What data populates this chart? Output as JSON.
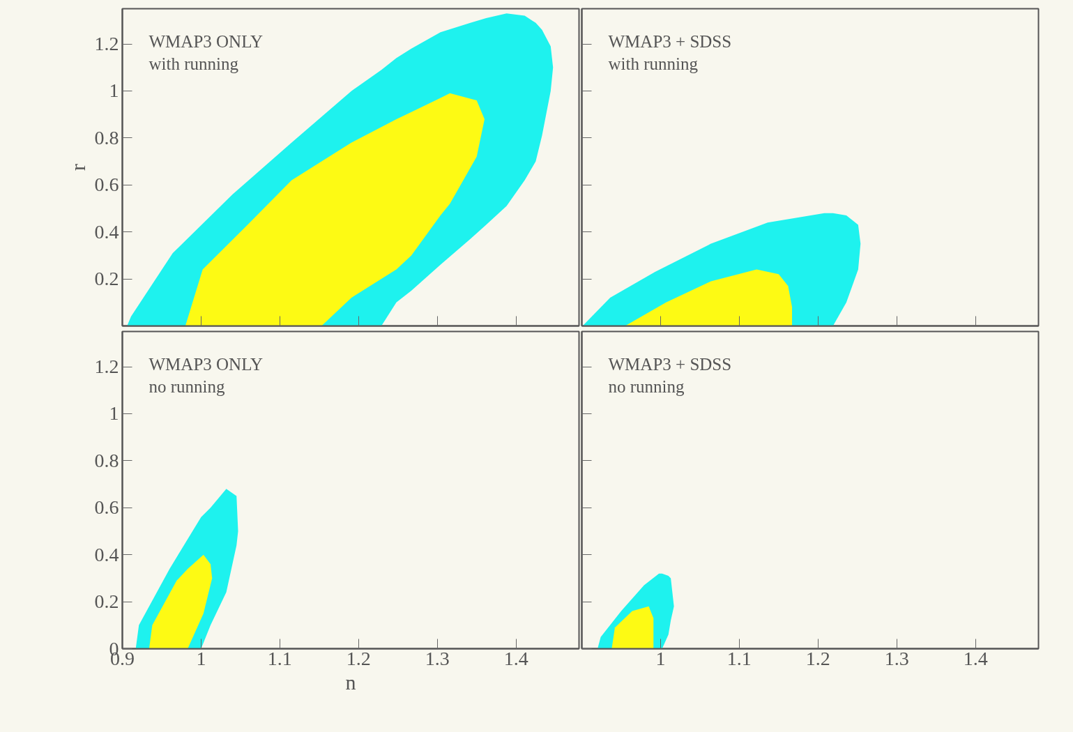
{
  "chart_data": [
    {
      "type": "area",
      "ylabel": "r",
      "xlim": [
        0.9,
        1.48
      ],
      "ylim": [
        0,
        1.35
      ],
      "xticks": [
        0.9,
        1,
        1.1,
        1.2,
        1.3,
        1.4
      ],
      "yticks": [
        0.2,
        0.4,
        0.6,
        0.8,
        1,
        1.2
      ],
      "tick_labels": "y",
      "grid": false,
      "annotations": [
        "WMAP3 ONLY",
        "with running"
      ],
      "series": [
        {
          "color": "#1ef2ee",
          "x": [
            0.906,
            0.911,
            0.964,
            1.04,
            1.115,
            1.191,
            1.229,
            1.248,
            1.267,
            1.304,
            1.342,
            1.362,
            1.388,
            1.411,
            1.425,
            1.433,
            1.444,
            1.447,
            1.444,
            1.433,
            1.425,
            1.411,
            1.388,
            1.362,
            1.342,
            1.304,
            1.267,
            1.248,
            1.229
          ],
          "values": [
            0,
            0.04,
            0.31,
            0.56,
            0.78,
            1.0,
            1.09,
            1.14,
            1.18,
            1.25,
            1.29,
            1.31,
            1.33,
            1.32,
            1.29,
            1.26,
            1.19,
            1.1,
            1.0,
            0.81,
            0.7,
            0.62,
            0.51,
            0.43,
            0.37,
            0.26,
            0.15,
            0.1,
            0
          ]
        },
        {
          "color": "#fdfa14",
          "x": [
            0.98,
            1.002,
            1.059,
            1.115,
            1.153,
            1.191,
            1.248,
            1.267,
            1.304,
            1.316,
            1.35,
            1.36,
            1.35,
            1.316,
            1.304,
            1.267,
            1.248,
            1.191,
            1.153
          ],
          "values": [
            0,
            0.24,
            0.43,
            0.62,
            0.7,
            0.78,
            0.88,
            0.91,
            0.97,
            0.99,
            0.96,
            0.88,
            0.72,
            0.52,
            0.47,
            0.3,
            0.24,
            0.12,
            0
          ]
        }
      ]
    },
    {
      "type": "area",
      "xlim": [
        0.9,
        1.48
      ],
      "ylim": [
        0,
        1.35
      ],
      "xticks": [
        0.9,
        1,
        1.1,
        1.2,
        1.3,
        1.4
      ],
      "yticks": [
        0.2,
        0.4,
        0.6,
        0.8,
        1,
        1.2
      ],
      "tick_labels": false,
      "grid": false,
      "annotations": [
        "WMAP3 + SDSS",
        "with running"
      ],
      "series": [
        {
          "color": "#1ef2ee",
          "x": [
            0.901,
            0.936,
            0.993,
            1.064,
            1.136,
            1.208,
            1.219,
            1.236,
            1.251,
            1.254,
            1.251,
            1.236,
            1.219
          ],
          "values": [
            0,
            0.12,
            0.23,
            0.35,
            0.44,
            0.48,
            0.48,
            0.47,
            0.43,
            0.35,
            0.24,
            0.1,
            0
          ]
        },
        {
          "color": "#fdfa14",
          "x": [
            0.955,
            1.007,
            1.064,
            1.122,
            1.15,
            1.162,
            1.167,
            1.167
          ],
          "values": [
            0,
            0.1,
            0.19,
            0.24,
            0.22,
            0.17,
            0.08,
            0
          ]
        }
      ]
    },
    {
      "type": "area",
      "xlabel": "n",
      "xlim": [
        0.9,
        1.48
      ],
      "ylim": [
        0,
        1.35
      ],
      "xticks": [
        0.9,
        1,
        1.1,
        1.2,
        1.3,
        1.4
      ],
      "yticks": [
        0,
        0.2,
        0.4,
        0.6,
        0.8,
        1,
        1.2
      ],
      "grid": false,
      "annotations": [
        "WMAP3 ONLY",
        "no running"
      ],
      "series": [
        {
          "color": "#1ef2ee",
          "x": [
            0.917,
            0.921,
            0.96,
            1.0,
            1.012,
            1.032,
            1.045,
            1.047,
            1.045,
            1.032,
            1.012,
            1.0
          ],
          "values": [
            0,
            0.1,
            0.34,
            0.56,
            0.6,
            0.68,
            0.65,
            0.5,
            0.44,
            0.24,
            0.1,
            0
          ]
        },
        {
          "color": "#fdfa14",
          "x": [
            0.934,
            0.938,
            0.969,
            0.983,
            1.003,
            1.012,
            1.014,
            1.003,
            0.983
          ],
          "values": [
            0,
            0.1,
            0.29,
            0.34,
            0.4,
            0.36,
            0.3,
            0.15,
            0
          ]
        }
      ]
    },
    {
      "type": "area",
      "xlim": [
        0.9,
        1.48
      ],
      "ylim": [
        0,
        1.35
      ],
      "xticks": [
        1,
        1.1,
        1.2,
        1.3,
        1.4
      ],
      "yticks": [
        0,
        0.2,
        0.4,
        0.6,
        0.8,
        1,
        1.2
      ],
      "tick_labels": "x",
      "grid": false,
      "annotations": [
        "WMAP3 + SDSS",
        "no running"
      ],
      "series": [
        {
          "color": "#1ef2ee",
          "x": [
            0.92,
            0.924,
            0.95,
            0.979,
            0.998,
            1.002,
            1.01,
            1.013,
            1.017,
            1.013,
            1.01,
            1.002
          ],
          "values": [
            0,
            0.05,
            0.16,
            0.27,
            0.32,
            0.32,
            0.31,
            0.3,
            0.18,
            0.12,
            0.06,
            0
          ]
        },
        {
          "color": "#fdfa14",
          "x": [
            0.938,
            0.942,
            0.964,
            0.985,
            0.991,
            0.991
          ],
          "values": [
            0,
            0.09,
            0.16,
            0.18,
            0.13,
            0
          ]
        }
      ]
    }
  ]
}
